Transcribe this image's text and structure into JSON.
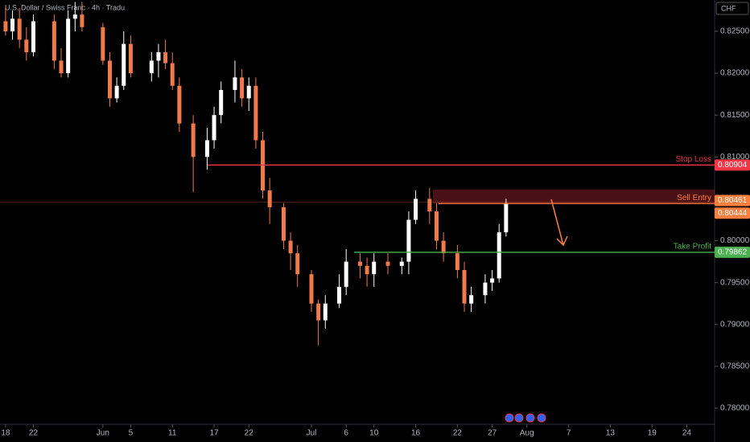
{
  "chart_data": {
    "type": "candlestick",
    "title": "U.S. Dollar / Swiss Franc · 4h · Tradu",
    "currency": "CHF",
    "up_color": "#ffffff",
    "down_color": "#f07a4a",
    "x": [
      0,
      1,
      2,
      3,
      4,
      7,
      8,
      9,
      10,
      11,
      14,
      15,
      16,
      17,
      18,
      21,
      22,
      23,
      24,
      25,
      27,
      29,
      30,
      31,
      33,
      34,
      35,
      36,
      37,
      38,
      40,
      41,
      42,
      44,
      45,
      46,
      48,
      49,
      51,
      52,
      53,
      55,
      57,
      58,
      59,
      61,
      62,
      63,
      65,
      66,
      67,
      69,
      70,
      71,
      72
    ],
    "open": [
      0.8262,
      0.825,
      0.8265,
      0.824,
      0.8225,
      0.8262,
      0.8215,
      0.82,
      0.8265,
      0.827,
      0.8255,
      0.8215,
      0.817,
      0.8185,
      0.8235,
      0.82,
      0.8215,
      0.8225,
      0.8212,
      0.8185,
      0.814,
      0.81,
      0.812,
      0.815,
      0.818,
      0.8195,
      0.817,
      0.8185,
      0.812,
      0.806,
      0.804,
      0.8,
      0.7985,
      0.796,
      0.7925,
      0.7905,
      0.7925,
      0.7945,
      0.7975,
      0.797,
      0.796,
      0.7975,
      0.797,
      0.7975,
      0.8025,
      0.805,
      0.8035,
      0.8,
      0.7985,
      0.7965,
      0.7925,
      0.7935,
      0.795,
      0.7955,
      0.801
    ],
    "high": [
      0.828,
      0.8275,
      0.8278,
      0.8255,
      0.827,
      0.827,
      0.823,
      0.8275,
      0.8285,
      0.8285,
      0.826,
      0.8225,
      0.8195,
      0.825,
      0.8245,
      0.8225,
      0.8235,
      0.824,
      0.8225,
      0.8195,
      0.815,
      0.8135,
      0.816,
      0.819,
      0.8215,
      0.8205,
      0.8195,
      0.8195,
      0.813,
      0.8075,
      0.8045,
      0.801,
      0.7995,
      0.7965,
      0.793,
      0.7935,
      0.796,
      0.799,
      0.7985,
      0.798,
      0.7985,
      0.7985,
      0.798,
      0.8035,
      0.806,
      0.8063,
      0.8045,
      0.801,
      0.7995,
      0.7975,
      0.7945,
      0.796,
      0.7965,
      0.802,
      0.805
    ],
    "low": [
      0.8245,
      0.824,
      0.823,
      0.8215,
      0.822,
      0.8205,
      0.8195,
      0.8195,
      0.825,
      0.825,
      0.821,
      0.816,
      0.8165,
      0.818,
      0.8195,
      0.819,
      0.8195,
      0.8205,
      0.818,
      0.813,
      0.8058,
      0.8085,
      0.811,
      0.814,
      0.8165,
      0.816,
      0.8155,
      0.811,
      0.805,
      0.802,
      0.799,
      0.7965,
      0.7945,
      0.7915,
      0.7875,
      0.7895,
      0.792,
      0.7935,
      0.7955,
      0.7945,
      0.7945,
      0.796,
      0.796,
      0.796,
      0.802,
      0.802,
      0.799,
      0.7975,
      0.7955,
      0.7915,
      0.7915,
      0.7925,
      0.794,
      0.795,
      0.8005
    ],
    "close": [
      0.825,
      0.8265,
      0.824,
      0.8225,
      0.8262,
      0.8215,
      0.82,
      0.8265,
      0.827,
      0.8255,
      0.8215,
      0.817,
      0.8185,
      0.8235,
      0.82,
      0.8215,
      0.8225,
      0.8212,
      0.8185,
      0.814,
      0.81,
      0.812,
      0.815,
      0.818,
      0.8195,
      0.817,
      0.8185,
      0.812,
      0.806,
      0.804,
      0.8,
      0.7985,
      0.796,
      0.7925,
      0.7905,
      0.7925,
      0.7945,
      0.7975,
      0.797,
      0.796,
      0.7975,
      0.797,
      0.7975,
      0.8025,
      0.805,
      0.8035,
      0.8,
      0.7985,
      0.7965,
      0.7925,
      0.7935,
      0.795,
      0.7955,
      0.801,
      0.8045
    ],
    "xlim": [
      -0.8,
      102
    ],
    "ylim": [
      0.77808,
      0.82874
    ],
    "yticks": [
      {
        "value": 0.825,
        "label": "0.82500"
      },
      {
        "value": 0.82,
        "label": "0.82000"
      },
      {
        "value": 0.815,
        "label": "0.81500"
      },
      {
        "value": 0.81,
        "label": "0.81000"
      },
      {
        "value": 0.805,
        "label": "0.80500"
      },
      {
        "value": 0.8,
        "label": "0.80000"
      },
      {
        "value": 0.795,
        "label": "0.79500"
      },
      {
        "value": 0.79,
        "label": "0.79000"
      },
      {
        "value": 0.785,
        "label": "0.78500"
      },
      {
        "value": 0.78,
        "label": "0.78000"
      }
    ],
    "xticks": [
      {
        "value": 0,
        "label": "18"
      },
      {
        "value": 4,
        "label": "22"
      },
      {
        "value": 14,
        "label": "Jun"
      },
      {
        "value": 18,
        "label": "5"
      },
      {
        "value": 24,
        "label": "11"
      },
      {
        "value": 30,
        "label": "17"
      },
      {
        "value": 35,
        "label": "22"
      },
      {
        "value": 44,
        "label": "Jul"
      },
      {
        "value": 49,
        "label": "6"
      },
      {
        "value": 53,
        "label": "10"
      },
      {
        "value": 59,
        "label": "16"
      },
      {
        "value": 65,
        "label": "22"
      },
      {
        "value": 70,
        "label": "27"
      },
      {
        "value": 75,
        "label": "Aug"
      },
      {
        "value": 81,
        "label": "7"
      },
      {
        "value": 87,
        "label": "13"
      },
      {
        "value": 93,
        "label": "19"
      },
      {
        "value": 98,
        "label": "24"
      }
    ],
    "levels": [
      {
        "name": "Stop Loss",
        "value": 0.80904,
        "color": "#f23645"
      },
      {
        "name": "Sell Entry",
        "value": 0.80444,
        "color": "#ff7f3f"
      },
      {
        "name": "Take Profit",
        "value": 0.79862,
        "color": "#4caf50"
      }
    ],
    "current_price": 0.80461,
    "sell_zone": [
      0.80444,
      0.8061
    ]
  }
}
